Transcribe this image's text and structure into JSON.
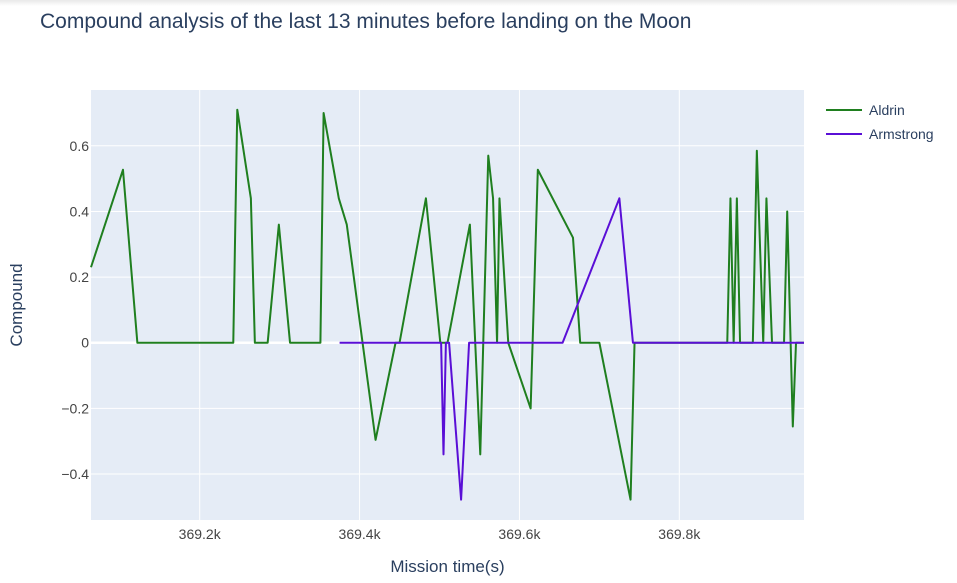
{
  "chart_data": {
    "type": "line",
    "title": "Compound analysis of the last 13 minutes before landing on the Moon",
    "xlabel": "Mission time(s)",
    "ylabel": "Compound",
    "xlim": [
      369.064,
      369.956
    ],
    "ylim": [
      -0.54,
      0.77
    ],
    "x_ticks": [
      369.2,
      369.4,
      369.6,
      369.8
    ],
    "x_tick_labels": [
      "369.2k",
      "369.4k",
      "369.6k",
      "369.8k"
    ],
    "y_ticks": [
      -0.4,
      -0.2,
      0,
      0.2,
      0.4,
      0.6
    ],
    "y_tick_labels": [
      "−0.4",
      "−0.2",
      "0",
      "0.2",
      "0.4",
      "0.6"
    ],
    "grid": true,
    "legend": "top-right",
    "series": [
      {
        "name": "Aldrin",
        "color": "#1f7f1f",
        "points": [
          [
            369.064,
            0.23
          ],
          [
            369.104,
            0.527
          ],
          [
            369.122,
            0.0
          ],
          [
            369.242,
            0.0
          ],
          [
            369.247,
            0.71
          ],
          [
            369.264,
            0.44
          ],
          [
            369.269,
            0.0
          ],
          [
            369.285,
            0.0
          ],
          [
            369.299,
            0.36
          ],
          [
            369.313,
            0.0
          ],
          [
            369.351,
            0.0
          ],
          [
            369.355,
            0.7
          ],
          [
            369.374,
            0.44
          ],
          [
            369.384,
            0.36
          ],
          [
            369.42,
            -0.296
          ],
          [
            369.445,
            0.0
          ],
          [
            369.45,
            0.0
          ],
          [
            369.483,
            0.44
          ],
          [
            369.501,
            0.0
          ],
          [
            369.51,
            0.0
          ],
          [
            369.538,
            0.36
          ],
          [
            369.551,
            -0.34
          ],
          [
            369.561,
            0.57
          ],
          [
            369.567,
            0.44
          ],
          [
            369.572,
            0.0
          ],
          [
            369.575,
            0.44
          ],
          [
            369.586,
            0.0
          ],
          [
            369.614,
            -0.2
          ],
          [
            369.623,
            0.527
          ],
          [
            369.667,
            0.32
          ],
          [
            369.676,
            0.0
          ],
          [
            369.7,
            0.0
          ],
          [
            369.739,
            -0.478
          ],
          [
            369.744,
            0.0
          ],
          [
            369.86,
            0.0
          ],
          [
            369.864,
            0.44
          ],
          [
            369.868,
            0.0
          ],
          [
            369.872,
            0.44
          ],
          [
            369.876,
            0.0
          ],
          [
            369.892,
            0.0
          ],
          [
            369.897,
            0.585
          ],
          [
            369.905,
            0.0
          ],
          [
            369.909,
            0.44
          ],
          [
            369.916,
            0.0
          ],
          [
            369.931,
            0.0
          ],
          [
            369.935,
            0.4
          ],
          [
            369.942,
            -0.255
          ],
          [
            369.946,
            0.0
          ],
          [
            369.956,
            0.0
          ]
        ]
      },
      {
        "name": "Armstrong",
        "color": "#5a0fd6",
        "points": [
          [
            369.375,
            0.0
          ],
          [
            369.502,
            0.0
          ],
          [
            369.505,
            -0.34
          ],
          [
            369.508,
            0.0
          ],
          [
            369.512,
            0.0
          ],
          [
            369.527,
            -0.478
          ],
          [
            369.537,
            0.0
          ],
          [
            369.654,
            0.0
          ],
          [
            369.725,
            0.44
          ],
          [
            369.742,
            0.0
          ],
          [
            369.956,
            0.0
          ]
        ]
      }
    ]
  }
}
